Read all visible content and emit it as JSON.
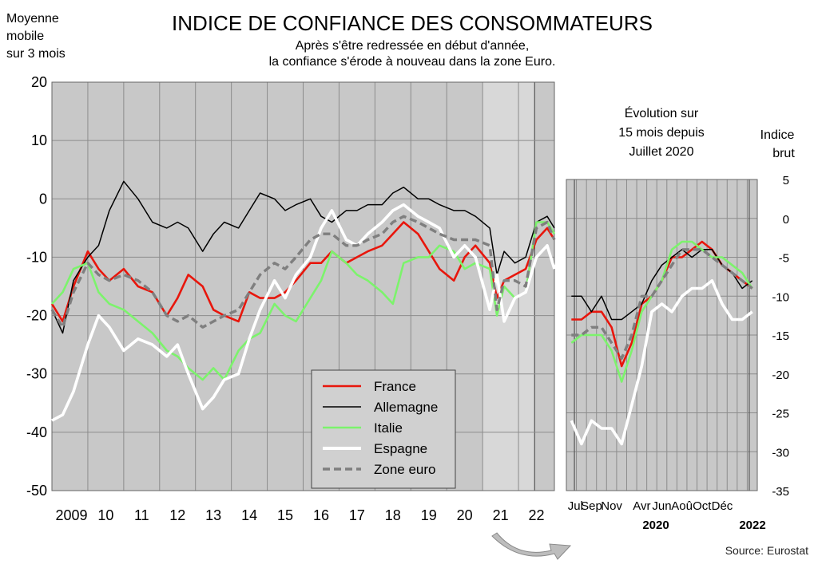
{
  "title": "INDICE DE CONFIANCE DES CONSOMMATEURS",
  "subtitle_lines": [
    "Après s'être redressée en début d'année,",
    "la confiance s'érode à nouveau dans la zone Euro."
  ],
  "left_axis_label_lines": [
    "Moyenne",
    "mobile",
    "sur 3 mois"
  ],
  "inset_title_lines": [
    "Évolution sur",
    "15 mois depuis",
    "Juillet 2020"
  ],
  "right_axis_label_lines": [
    "Indice",
    "brut"
  ],
  "source": "Source: Eurostat",
  "colors": {
    "France": "#e8160c",
    "Allemagne": "#000000",
    "Italie": "#7cf36c",
    "Espagne": "#ffffff",
    "Zone euro": "#7f7f7f",
    "plot_bg": "#c8c8c8",
    "highlight_bg": "#d8d8d8",
    "grid": "#8c8c8c"
  },
  "chart_data": [
    {
      "type": "line",
      "title": "INDICE DE CONFIANCE DES CONSOMMATEURS",
      "ylabel": "Moyenne mobile sur 3 mois",
      "ylim": [
        -50,
        20
      ],
      "yticks": [
        20,
        10,
        0,
        -10,
        -20,
        -30,
        -40,
        -50
      ],
      "xlim": [
        2008.0,
        2022.0
      ],
      "x_tick_labels": [
        "2009",
        "10",
        "11",
        "12",
        "13",
        "14",
        "15",
        "16",
        "17",
        "18",
        "19",
        "20",
        "21",
        "22"
      ],
      "grid": true,
      "legend_position": "bottom-center",
      "series": [
        {
          "name": "France",
          "style": "solid",
          "x": [
            2008.0,
            2008.3,
            2008.6,
            2009.0,
            2009.3,
            2009.6,
            2010.0,
            2010.4,
            2010.8,
            2011.2,
            2011.5,
            2011.8,
            2012.2,
            2012.5,
            2012.8,
            2013.2,
            2013.5,
            2013.8,
            2014.2,
            2014.5,
            2014.8,
            2015.2,
            2015.5,
            2015.8,
            2016.2,
            2016.5,
            2016.8,
            2017.2,
            2017.5,
            2017.8,
            2018.2,
            2018.5,
            2018.8,
            2019.2,
            2019.5,
            2019.8,
            2020.2,
            2020.4,
            2020.6,
            2020.9,
            2021.2,
            2021.5,
            2021.8,
            2022.0
          ],
          "y": [
            -18,
            -21,
            -15,
            -9,
            -12,
            -14,
            -12,
            -15,
            -16,
            -20,
            -17,
            -13,
            -15,
            -19,
            -20,
            -21,
            -16,
            -17,
            -17,
            -16,
            -14,
            -11,
            -11,
            -9,
            -11,
            -10,
            -9,
            -8,
            -6,
            -4,
            -6,
            -9,
            -12,
            -14,
            -10,
            -8,
            -11,
            -17,
            -14,
            -13,
            -12,
            -7,
            -5,
            -7
          ]
        },
        {
          "name": "Allemagne",
          "style": "solid",
          "x": [
            2008.0,
            2008.3,
            2008.6,
            2009.0,
            2009.3,
            2009.6,
            2010.0,
            2010.4,
            2010.8,
            2011.2,
            2011.5,
            2011.8,
            2012.2,
            2012.5,
            2012.8,
            2013.2,
            2013.5,
            2013.8,
            2014.2,
            2014.5,
            2014.8,
            2015.2,
            2015.5,
            2015.8,
            2016.2,
            2016.5,
            2016.8,
            2017.2,
            2017.5,
            2017.8,
            2018.2,
            2018.5,
            2018.8,
            2019.2,
            2019.5,
            2019.8,
            2020.2,
            2020.4,
            2020.6,
            2020.9,
            2021.2,
            2021.5,
            2021.8,
            2022.0
          ],
          "y": [
            -19,
            -23,
            -14,
            -10,
            -8,
            -2,
            3,
            0,
            -4,
            -5,
            -4,
            -5,
            -9,
            -6,
            -4,
            -5,
            -2,
            1,
            0,
            -2,
            -1,
            0,
            -3,
            -4,
            -2,
            -2,
            -1,
            -1,
            1,
            2,
            0,
            0,
            -1,
            -2,
            -2,
            -3,
            -5,
            -13,
            -9,
            -11,
            -10,
            -4,
            -3,
            -5
          ]
        },
        {
          "name": "Italie",
          "style": "solid",
          "x": [
            2008.0,
            2008.3,
            2008.6,
            2009.0,
            2009.3,
            2009.6,
            2010.0,
            2010.4,
            2010.8,
            2011.2,
            2011.5,
            2011.8,
            2012.2,
            2012.5,
            2012.8,
            2013.2,
            2013.5,
            2013.8,
            2014.2,
            2014.5,
            2014.8,
            2015.2,
            2015.5,
            2015.8,
            2016.2,
            2016.5,
            2016.8,
            2017.2,
            2017.5,
            2017.8,
            2018.2,
            2018.5,
            2018.8,
            2019.2,
            2019.5,
            2019.8,
            2020.2,
            2020.4,
            2020.6,
            2020.9,
            2021.2,
            2021.5,
            2021.8,
            2022.0
          ],
          "y": [
            -18,
            -16,
            -12,
            -11,
            -16,
            -18,
            -19,
            -21,
            -23,
            -26,
            -27,
            -29,
            -31,
            -29,
            -31,
            -26,
            -24,
            -23,
            -18,
            -20,
            -21,
            -17,
            -14,
            -9,
            -11,
            -13,
            -14,
            -16,
            -18,
            -11,
            -10,
            -10,
            -8,
            -9,
            -12,
            -11,
            -12,
            -20,
            -15,
            -17,
            -16,
            -4,
            -4,
            -6
          ]
        },
        {
          "name": "Espagne",
          "style": "solid",
          "x": [
            2008.0,
            2008.3,
            2008.6,
            2009.0,
            2009.3,
            2009.6,
            2010.0,
            2010.4,
            2010.8,
            2011.2,
            2011.5,
            2011.8,
            2012.2,
            2012.5,
            2012.8,
            2013.2,
            2013.5,
            2013.8,
            2014.2,
            2014.5,
            2014.8,
            2015.2,
            2015.5,
            2015.8,
            2016.2,
            2016.5,
            2016.8,
            2017.2,
            2017.5,
            2017.8,
            2018.2,
            2018.5,
            2018.8,
            2019.2,
            2019.5,
            2019.8,
            2020.2,
            2020.4,
            2020.6,
            2020.9,
            2021.2,
            2021.5,
            2021.8,
            2022.0
          ],
          "y": [
            -38,
            -37,
            -33,
            -25,
            -20,
            -22,
            -26,
            -24,
            -25,
            -27,
            -25,
            -30,
            -36,
            -34,
            -31,
            -30,
            -24,
            -19,
            -14,
            -17,
            -13,
            -10,
            -5,
            -2,
            -7,
            -8,
            -6,
            -4,
            -2,
            -1,
            -3,
            -4,
            -5,
            -10,
            -8,
            -10,
            -19,
            -13,
            -21,
            -17,
            -16,
            -10,
            -8,
            -12
          ]
        },
        {
          "name": "Zone euro",
          "style": "dashed",
          "x": [
            2008.0,
            2008.3,
            2008.6,
            2009.0,
            2009.3,
            2009.6,
            2010.0,
            2010.4,
            2010.8,
            2011.2,
            2011.5,
            2011.8,
            2012.2,
            2012.5,
            2012.8,
            2013.2,
            2013.5,
            2013.8,
            2014.2,
            2014.5,
            2014.8,
            2015.2,
            2015.5,
            2015.8,
            2016.2,
            2016.5,
            2016.8,
            2017.2,
            2017.5,
            2017.8,
            2018.2,
            2018.5,
            2018.8,
            2019.2,
            2019.5,
            2019.8,
            2020.2,
            2020.4,
            2020.6,
            2020.9,
            2021.2,
            2021.5,
            2021.8,
            2022.0
          ],
          "y": [
            -19,
            -22,
            -16,
            -11,
            -13,
            -14,
            -13,
            -14,
            -16,
            -20,
            -21,
            -20,
            -22,
            -21,
            -20,
            -19,
            -16,
            -13,
            -11,
            -12,
            -10,
            -7,
            -6,
            -6,
            -8,
            -8,
            -7,
            -6,
            -4,
            -3,
            -4,
            -5,
            -6,
            -7,
            -7,
            -7,
            -8,
            -19,
            -14,
            -14,
            -15,
            -5,
            -4,
            -7
          ]
        }
      ]
    },
    {
      "type": "line",
      "title": "Évolution sur 15 mois depuis Juillet 2020",
      "ylabel": "Indice brut",
      "ylim": [
        -35,
        5
      ],
      "yticks": [
        5,
        0,
        -5,
        -10,
        -15,
        -20,
        -25,
        -30,
        -35
      ],
      "x_tick_labels": [
        "Jul",
        "Sep",
        "Nov",
        "Avr",
        "Jun",
        "Aoû",
        "Oct",
        "Déc"
      ],
      "x_year_labels": [
        "2020",
        "2022"
      ],
      "x": [
        "2020-07",
        "2020-08",
        "2020-09",
        "2020-10",
        "2020-11",
        "2020-12",
        "2021-01",
        "2021-02",
        "2021-03",
        "2021-04",
        "2021-05",
        "2021-06",
        "2021-07",
        "2021-08",
        "2021-09",
        "2021-10",
        "2021-11",
        "2021-12",
        "2022-01"
      ],
      "grid": true,
      "series": [
        {
          "name": "France",
          "style": "solid",
          "values": [
            -13,
            -13,
            -12,
            -12,
            -14,
            -19,
            -16,
            -11,
            -10,
            -8,
            -5,
            -5,
            -4,
            -3,
            -4,
            -6,
            -7,
            -8,
            -9
          ]
        },
        {
          "name": "Allemagne",
          "style": "solid",
          "values": [
            -10,
            -10,
            -12,
            -10,
            -13,
            -13,
            -12,
            -11,
            -8,
            -6,
            -5,
            -4,
            -5,
            -4,
            -4,
            -6,
            -7,
            -9,
            -8
          ]
        },
        {
          "name": "Italie",
          "style": "solid",
          "values": [
            -16,
            -15,
            -15,
            -15,
            -17,
            -21,
            -17,
            -12,
            -10,
            -8,
            -4,
            -3,
            -3,
            -4,
            -5,
            -5,
            -6,
            -7,
            -9
          ]
        },
        {
          "name": "Espagne",
          "style": "solid",
          "values": [
            -26,
            -29,
            -26,
            -27,
            -27,
            -29,
            -24,
            -19,
            -12,
            -11,
            -12,
            -10,
            -9,
            -9,
            -8,
            -11,
            -13,
            -13,
            -12
          ]
        },
        {
          "name": "Zone euro",
          "style": "dashed",
          "values": [
            -15,
            -15,
            -14,
            -14,
            -16,
            -18,
            -15,
            -10,
            -10,
            -8,
            -6,
            -4,
            -4,
            -4,
            -5,
            -6,
            -7,
            -8,
            -9
          ]
        }
      ]
    }
  ]
}
